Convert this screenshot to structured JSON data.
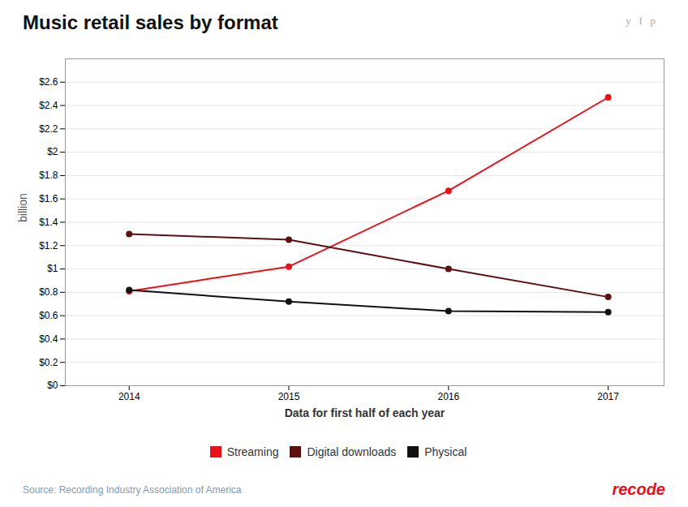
{
  "chart_data": {
    "type": "line",
    "title": "Music retail sales by format",
    "xlabel": "Data for first half of each year",
    "ylabel": "billion",
    "x": [
      2014,
      2015,
      2016,
      2017
    ],
    "series": [
      {
        "name": "Streaming",
        "color": "#e8111a",
        "marker": "circle",
        "values": [
          0.81,
          1.02,
          1.67,
          2.47
        ]
      },
      {
        "name": "Digital downloads",
        "color": "#5c1010",
        "marker": "circle",
        "values": [
          1.3,
          1.25,
          1.0,
          0.76
        ]
      },
      {
        "name": "Physical",
        "color": "#111111",
        "marker": "circle",
        "values": [
          0.82,
          0.72,
          0.64,
          0.63
        ]
      }
    ],
    "xlim": [
      2013.6,
      2017.35
    ],
    "xticks": [
      2014,
      2015,
      2016,
      2017
    ],
    "ylim": [
      0,
      2.8
    ],
    "yticks": [
      {
        "value": 0,
        "label": "$0"
      },
      {
        "value": 0.2,
        "label": "$0.2"
      },
      {
        "value": 0.4,
        "label": "$0.4"
      },
      {
        "value": 0.6,
        "label": "$0.6"
      },
      {
        "value": 0.8,
        "label": "$0.8"
      },
      {
        "value": 1.0,
        "label": "$1"
      },
      {
        "value": 1.2,
        "label": "$1.2"
      },
      {
        "value": 1.4,
        "label": "$1.4"
      },
      {
        "value": 1.6,
        "label": "$1.6"
      },
      {
        "value": 1.8,
        "label": "$1.8"
      },
      {
        "value": 2.0,
        "label": "$2"
      },
      {
        "value": 2.2,
        "label": "$2.2"
      },
      {
        "value": 2.4,
        "label": "$2.4"
      },
      {
        "value": 2.6,
        "label": "$2.6"
      }
    ],
    "grid": true,
    "legend": "bottom",
    "annotations": [
      "y   f   p",
      "Source: Recording Industry Association of America",
      "recode"
    ]
  }
}
